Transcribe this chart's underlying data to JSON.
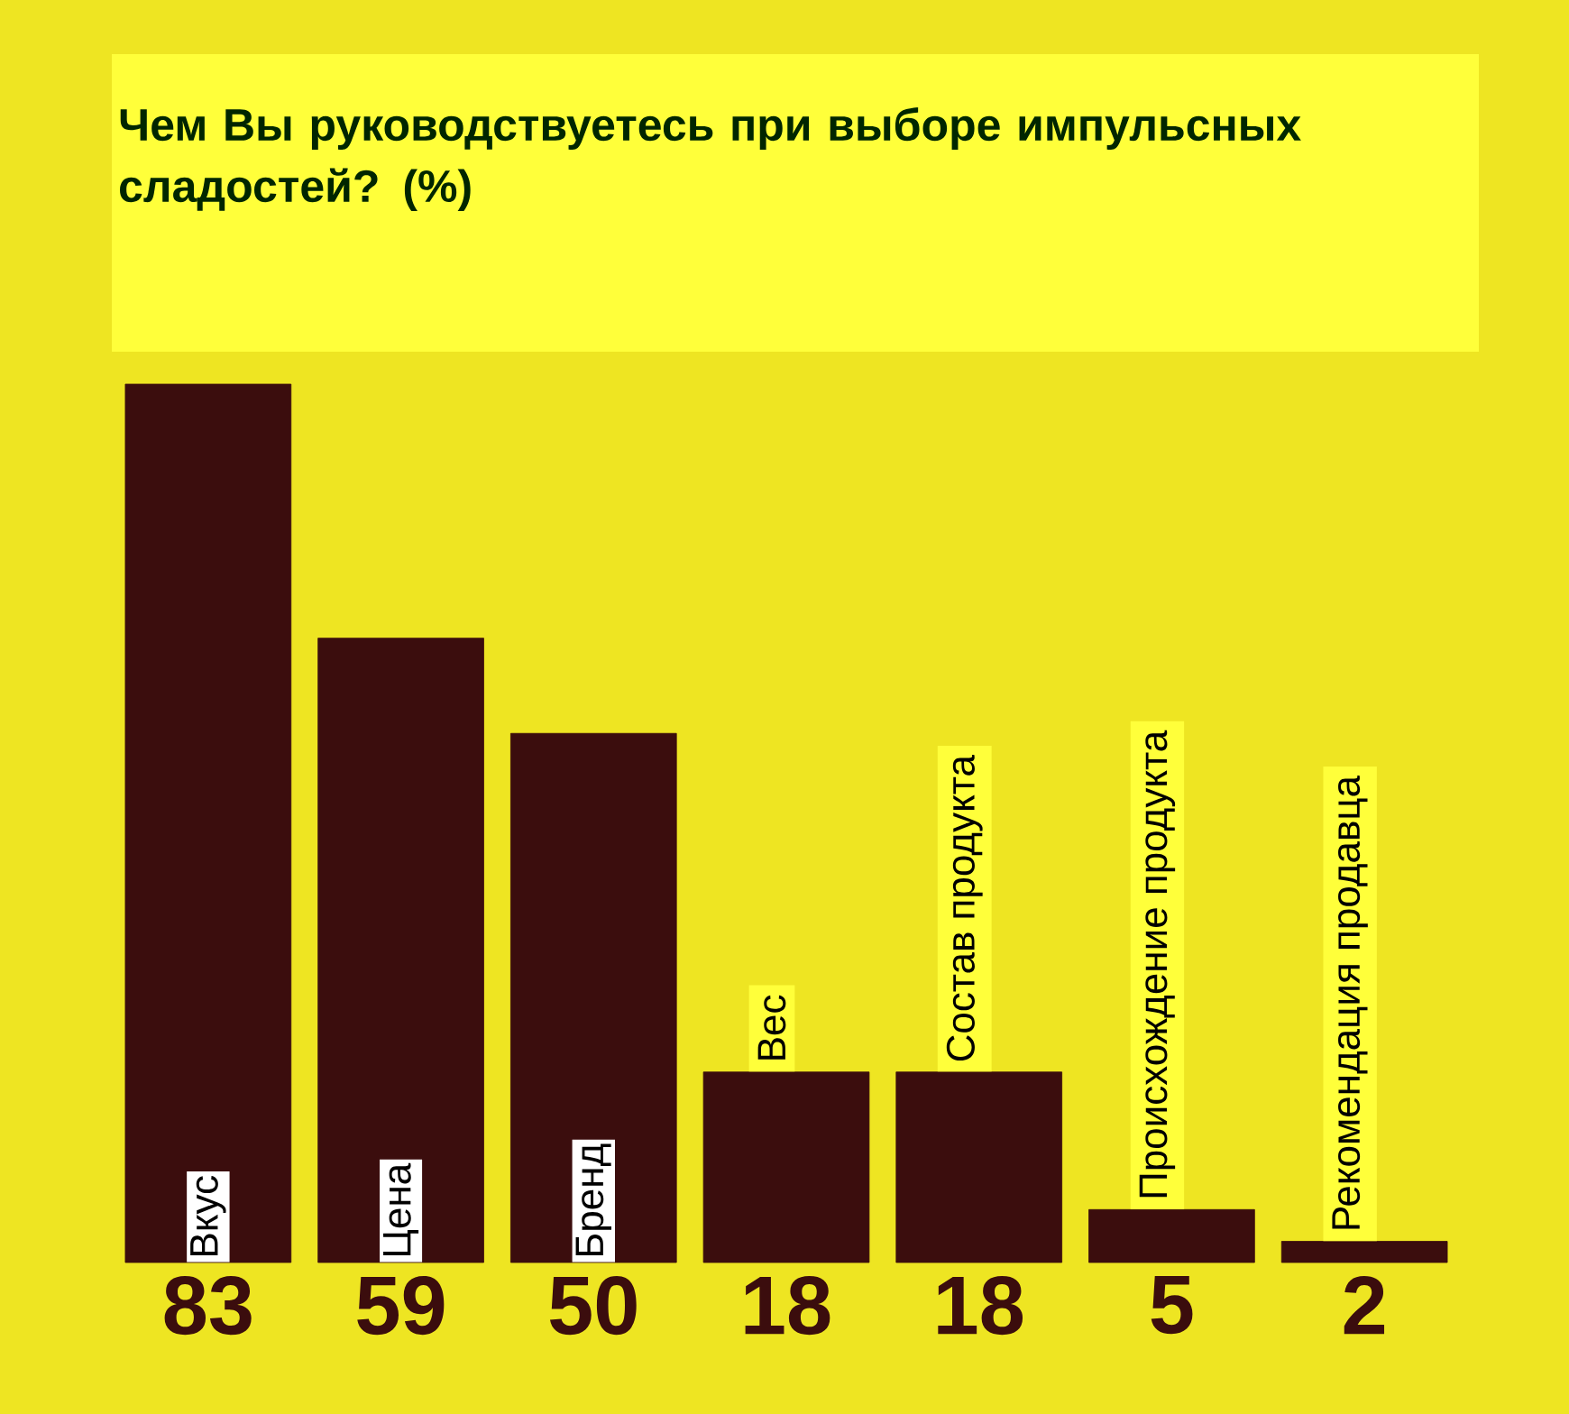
{
  "chart_data": {
    "type": "bar",
    "title": "Чем Вы руководствуетесь при выборе импульсных сладостей? (%)",
    "categories": [
      "Вкус",
      "Цена",
      "Бренд",
      "Вес",
      "Состав продукта",
      "Происхождение продукта",
      "Рекомендация продавца"
    ],
    "values": [
      83,
      59,
      50,
      18,
      18,
      5,
      2
    ],
    "color": "#3b0d0d",
    "data_labels": true
  }
}
